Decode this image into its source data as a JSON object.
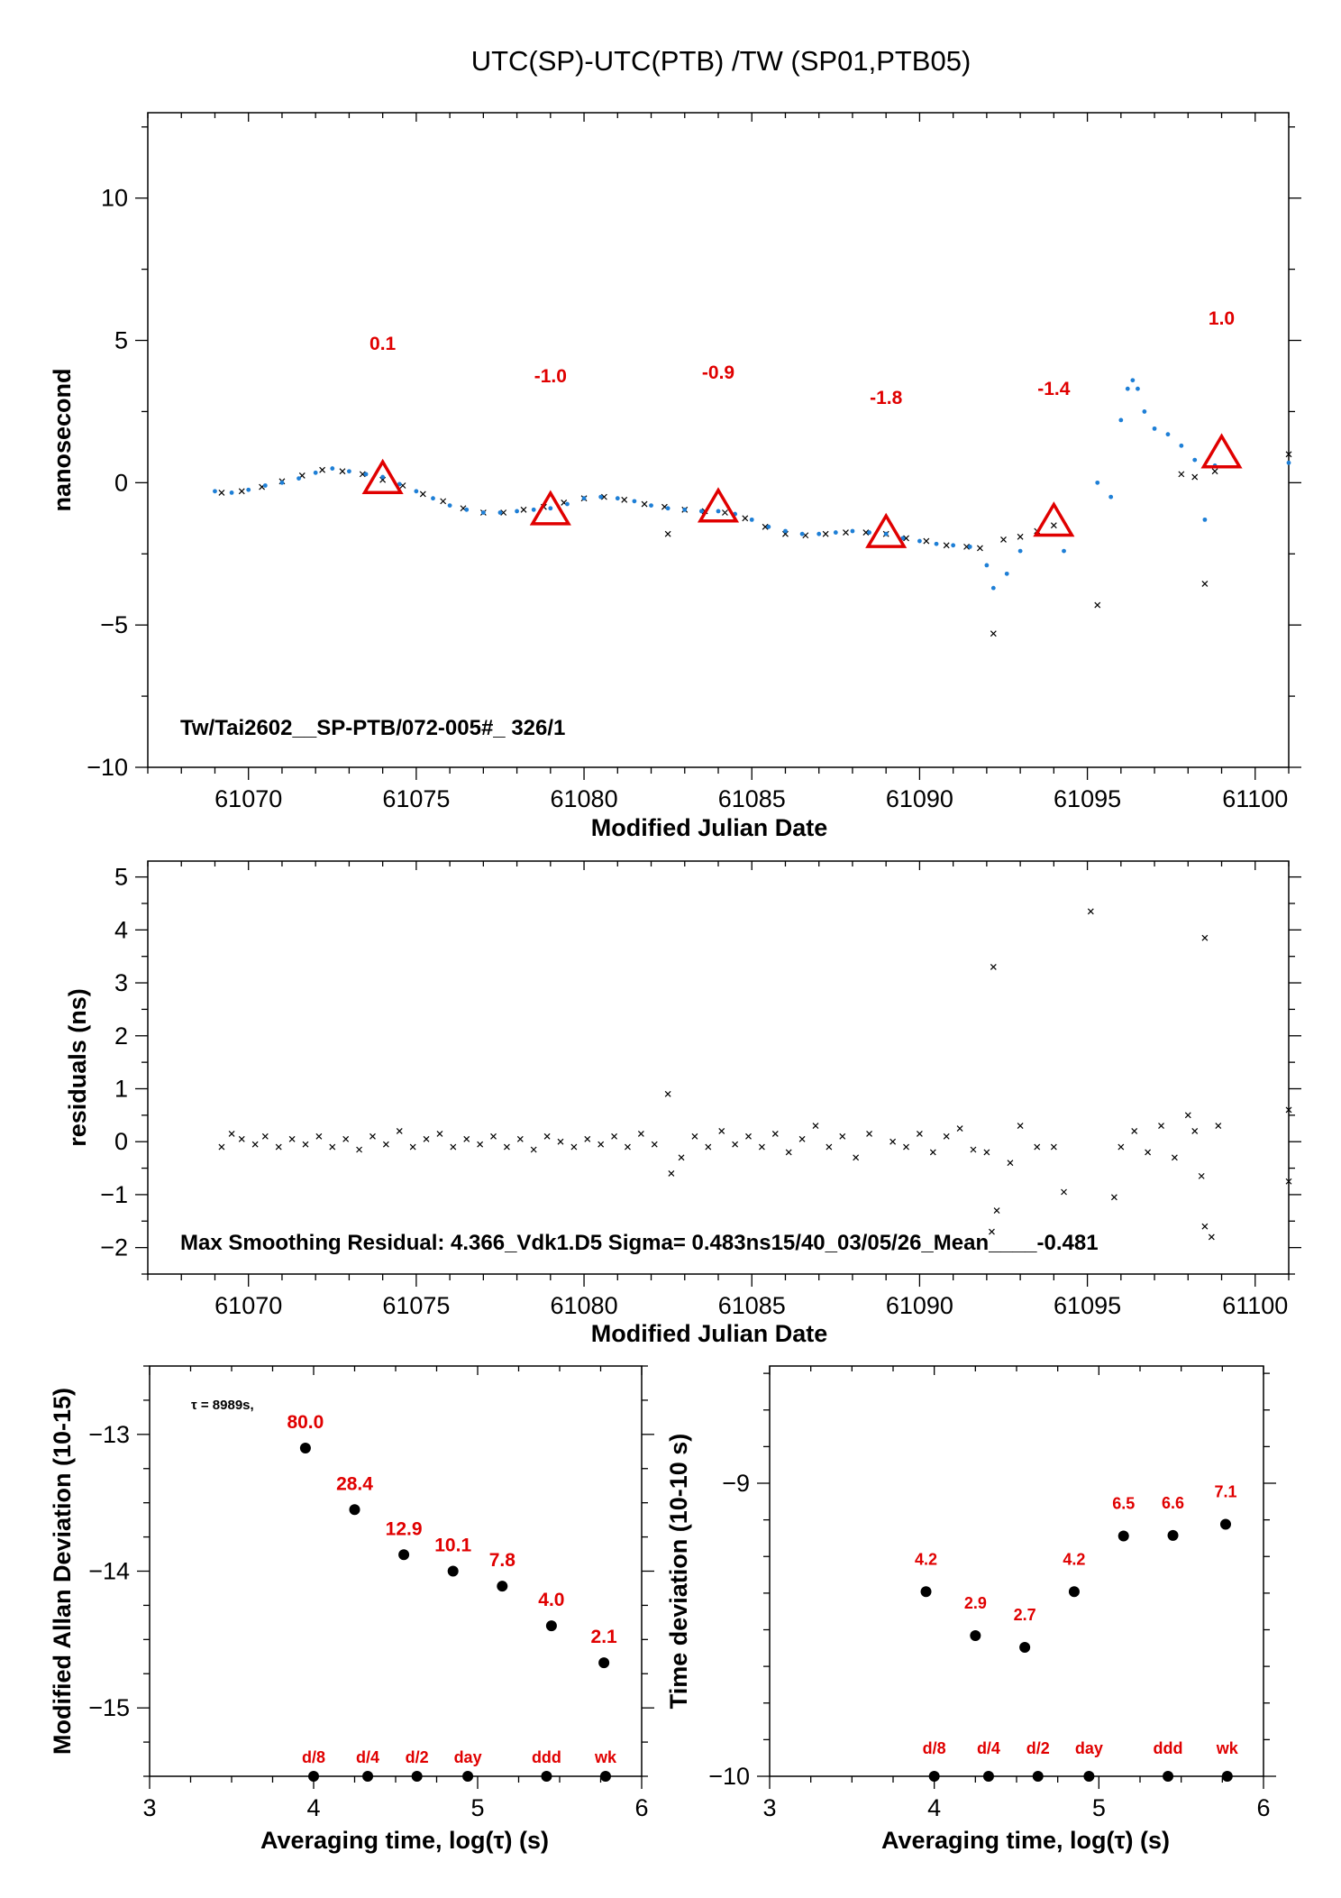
{
  "title": "UTC(SP)-UTC(PTB)  /TW  (SP01,PTB05)",
  "colors": {
    "red": "#e00000",
    "blue": "#1e7fd6",
    "black": "#000000"
  },
  "chart_data": [
    {
      "id": "main",
      "type": "scatter",
      "xlabel": "Modified Julian Date",
      "ylabel": "nanosecond",
      "xlim": [
        61067,
        61101
      ],
      "ylim": [
        -10,
        13
      ],
      "xticks": [
        61070,
        61075,
        61080,
        61085,
        61090,
        61095,
        61100
      ],
      "yticks": [
        -10,
        -5,
        0,
        5,
        10
      ],
      "annotation": "Tw/Tai2602__SP-PTB/072-005#_  326/1",
      "series": [
        {
          "marker": "x",
          "color": "#000000",
          "points": [
            [
              61069.2,
              -0.35
            ],
            [
              61069.8,
              -0.3
            ],
            [
              61070.4,
              -0.15
            ],
            [
              61071.0,
              0.05
            ],
            [
              61071.6,
              0.25
            ],
            [
              61072.2,
              0.45
            ],
            [
              61072.8,
              0.4
            ],
            [
              61073.4,
              0.3
            ],
            [
              61074.0,
              0.1
            ],
            [
              61074.6,
              -0.1
            ],
            [
              61075.2,
              -0.4
            ],
            [
              61075.8,
              -0.65
            ],
            [
              61076.4,
              -0.9
            ],
            [
              61077.0,
              -1.05
            ],
            [
              61077.6,
              -1.05
            ],
            [
              61078.2,
              -0.95
            ],
            [
              61078.8,
              -0.85
            ],
            [
              61079.4,
              -0.7
            ],
            [
              61080.0,
              -0.55
            ],
            [
              61080.6,
              -0.5
            ],
            [
              61081.2,
              -0.6
            ],
            [
              61081.8,
              -0.75
            ],
            [
              61082.4,
              -0.85
            ],
            [
              61082.5,
              -1.8
            ],
            [
              61083.0,
              -0.95
            ],
            [
              61083.6,
              -1.0
            ],
            [
              61084.2,
              -1.05
            ],
            [
              61084.8,
              -1.25
            ],
            [
              61085.4,
              -1.55
            ],
            [
              61086.0,
              -1.8
            ],
            [
              61086.6,
              -1.85
            ],
            [
              61087.2,
              -1.8
            ],
            [
              61087.8,
              -1.75
            ],
            [
              61088.4,
              -1.75
            ],
            [
              61089.0,
              -1.8
            ],
            [
              61089.6,
              -1.95
            ],
            [
              61090.2,
              -2.05
            ],
            [
              61090.8,
              -2.2
            ],
            [
              61091.4,
              -2.25
            ],
            [
              61091.8,
              -2.3
            ],
            [
              61092.2,
              -5.3
            ],
            [
              61092.5,
              -2.0
            ],
            [
              61093.0,
              -1.9
            ],
            [
              61093.5,
              -1.7
            ],
            [
              61094.0,
              -1.5
            ],
            [
              61095.3,
              -4.3
            ],
            [
              61097.8,
              0.3
            ],
            [
              61098.2,
              0.2
            ],
            [
              61098.5,
              -3.55
            ],
            [
              61098.8,
              0.4
            ],
            [
              61101.0,
              1.0
            ]
          ]
        },
        {
          "marker": "dot",
          "color": "#1e7fd6",
          "points": [
            [
              61069.0,
              -0.3
            ],
            [
              61069.5,
              -0.35
            ],
            [
              61070.0,
              -0.25
            ],
            [
              61070.5,
              -0.1
            ],
            [
              61071.0,
              0.0
            ],
            [
              61071.5,
              0.15
            ],
            [
              61072.0,
              0.35
            ],
            [
              61072.5,
              0.5
            ],
            [
              61073.0,
              0.4
            ],
            [
              61073.5,
              0.3
            ],
            [
              61074.0,
              0.2
            ],
            [
              61074.5,
              -0.05
            ],
            [
              61075.0,
              -0.3
            ],
            [
              61075.5,
              -0.55
            ],
            [
              61076.0,
              -0.8
            ],
            [
              61076.5,
              -0.95
            ],
            [
              61077.0,
              -1.05
            ],
            [
              61077.5,
              -1.05
            ],
            [
              61078.0,
              -1.0
            ],
            [
              61078.5,
              -0.95
            ],
            [
              61079.0,
              -0.9
            ],
            [
              61079.5,
              -0.75
            ],
            [
              61080.0,
              -0.55
            ],
            [
              61080.5,
              -0.5
            ],
            [
              61081.0,
              -0.55
            ],
            [
              61081.5,
              -0.65
            ],
            [
              61082.0,
              -0.8
            ],
            [
              61082.5,
              -0.9
            ],
            [
              61083.0,
              -0.95
            ],
            [
              61083.5,
              -1.0
            ],
            [
              61084.0,
              -1.0
            ],
            [
              61084.5,
              -1.1
            ],
            [
              61085.0,
              -1.3
            ],
            [
              61085.5,
              -1.55
            ],
            [
              61086.0,
              -1.7
            ],
            [
              61086.5,
              -1.8
            ],
            [
              61087.0,
              -1.8
            ],
            [
              61087.5,
              -1.75
            ],
            [
              61088.0,
              -1.7
            ],
            [
              61088.5,
              -1.75
            ],
            [
              61089.0,
              -1.8
            ],
            [
              61089.5,
              -1.95
            ],
            [
              61090.0,
              -2.05
            ],
            [
              61090.5,
              -2.15
            ],
            [
              61091.0,
              -2.2
            ],
            [
              61091.5,
              -2.25
            ],
            [
              61092.0,
              -2.9
            ],
            [
              61092.2,
              -3.7
            ],
            [
              61092.6,
              -3.2
            ],
            [
              61093.0,
              -2.4
            ],
            [
              61094.3,
              -2.4
            ],
            [
              61095.3,
              0.0
            ],
            [
              61095.7,
              -0.5
            ],
            [
              61096.0,
              2.2
            ],
            [
              61096.2,
              3.3
            ],
            [
              61096.35,
              3.6
            ],
            [
              61096.5,
              3.3
            ],
            [
              61096.7,
              2.5
            ],
            [
              61097.0,
              1.9
            ],
            [
              61097.4,
              1.7
            ],
            [
              61097.8,
              1.3
            ],
            [
              61098.2,
              0.8
            ],
            [
              61098.5,
              -1.3
            ],
            [
              61098.8,
              0.6
            ],
            [
              61101.0,
              0.7
            ]
          ]
        }
      ],
      "triangles": [
        {
          "x": 61074,
          "y": 0.1,
          "label": "0.1"
        },
        {
          "x": 61079,
          "y": -1.0,
          "label": "-1.0"
        },
        {
          "x": 61084,
          "y": -0.9,
          "label": "-0.9"
        },
        {
          "x": 61089,
          "y": -1.8,
          "label": "-1.8"
        },
        {
          "x": 61094,
          "y": -1.4,
          "label": "-1.4"
        },
        {
          "x": 61099,
          "y": 1.0,
          "label": "1.0"
        }
      ]
    },
    {
      "id": "residuals",
      "type": "scatter",
      "xlabel": "Modified Julian Date",
      "ylabel": "residuals (ns)",
      "xlim": [
        61067,
        61101
      ],
      "ylim": [
        -2.5,
        5.3
      ],
      "xticks": [
        61070,
        61075,
        61080,
        61085,
        61090,
        61095,
        61100
      ],
      "yticks": [
        -2,
        -1,
        0,
        1,
        2,
        3,
        4,
        5
      ],
      "annotation": "Max Smoothing Residual: 4.366_Vdk1.D5  Sigma= 0.483ns15/40_03/05/26_Mean____-0.481",
      "series": [
        {
          "marker": "x",
          "color": "#000000",
          "points": [
            [
              61069.2,
              -0.1
            ],
            [
              61069.5,
              0.15
            ],
            [
              61069.8,
              0.05
            ],
            [
              61070.2,
              -0.05
            ],
            [
              61070.5,
              0.1
            ],
            [
              61070.9,
              -0.1
            ],
            [
              61071.3,
              0.05
            ],
            [
              61071.7,
              -0.05
            ],
            [
              61072.1,
              0.1
            ],
            [
              61072.5,
              -0.1
            ],
            [
              61072.9,
              0.05
            ],
            [
              61073.3,
              -0.15
            ],
            [
              61073.7,
              0.1
            ],
            [
              61074.1,
              -0.05
            ],
            [
              61074.5,
              0.2
            ],
            [
              61074.9,
              -0.1
            ],
            [
              61075.3,
              0.05
            ],
            [
              61075.7,
              0.15
            ],
            [
              61076.1,
              -0.1
            ],
            [
              61076.5,
              0.05
            ],
            [
              61076.9,
              -0.05
            ],
            [
              61077.3,
              0.1
            ],
            [
              61077.7,
              -0.1
            ],
            [
              61078.1,
              0.05
            ],
            [
              61078.5,
              -0.15
            ],
            [
              61078.9,
              0.1
            ],
            [
              61079.3,
              0.0
            ],
            [
              61079.7,
              -0.1
            ],
            [
              61080.1,
              0.05
            ],
            [
              61080.5,
              -0.05
            ],
            [
              61080.9,
              0.1
            ],
            [
              61081.3,
              -0.1
            ],
            [
              61081.7,
              0.15
            ],
            [
              61082.1,
              -0.05
            ],
            [
              61082.5,
              0.9
            ],
            [
              61082.6,
              -0.6
            ],
            [
              61082.9,
              -0.3
            ],
            [
              61083.3,
              0.1
            ],
            [
              61083.7,
              -0.1
            ],
            [
              61084.1,
              0.2
            ],
            [
              61084.5,
              -0.05
            ],
            [
              61084.9,
              0.1
            ],
            [
              61085.3,
              -0.1
            ],
            [
              61085.7,
              0.15
            ],
            [
              61086.1,
              -0.2
            ],
            [
              61086.5,
              0.05
            ],
            [
              61086.9,
              0.3
            ],
            [
              61087.3,
              -0.1
            ],
            [
              61087.7,
              0.1
            ],
            [
              61088.1,
              -0.3
            ],
            [
              61088.5,
              0.15
            ],
            [
              61089.2,
              0.0
            ],
            [
              61089.6,
              -0.1
            ],
            [
              61090.0,
              0.15
            ],
            [
              61090.4,
              -0.2
            ],
            [
              61090.8,
              0.1
            ],
            [
              61091.2,
              0.25
            ],
            [
              61091.6,
              -0.15
            ],
            [
              61092.0,
              -0.2
            ],
            [
              61092.2,
              3.3
            ],
            [
              61092.15,
              -1.7
            ],
            [
              61092.3,
              -1.3
            ],
            [
              61092.7,
              -0.4
            ],
            [
              61093.0,
              0.3
            ],
            [
              61093.5,
              -0.1
            ],
            [
              61094.0,
              -0.1
            ],
            [
              61094.3,
              -0.95
            ],
            [
              61095.1,
              4.35
            ],
            [
              61095.8,
              -1.05
            ],
            [
              61096.0,
              -0.1
            ],
            [
              61096.4,
              0.2
            ],
            [
              61096.8,
              -0.2
            ],
            [
              61097.2,
              0.3
            ],
            [
              61097.6,
              -0.3
            ],
            [
              61098.0,
              0.5
            ],
            [
              61098.2,
              0.2
            ],
            [
              61098.4,
              -0.65
            ],
            [
              61098.5,
              -1.6
            ],
            [
              61098.5,
              3.85
            ],
            [
              61098.7,
              -1.8
            ],
            [
              61098.9,
              0.3
            ],
            [
              61101.0,
              0.6
            ],
            [
              61101.0,
              -0.75
            ]
          ]
        }
      ]
    },
    {
      "id": "mdev",
      "type": "scatter",
      "xlabel": "Averaging time, log(τ) (s)",
      "ylabel": "Modified Allan Deviation (10-15)",
      "xlim": [
        3,
        6
      ],
      "ylim": [
        -15.5,
        -12.5
      ],
      "xticks": [
        3,
        4,
        5,
        6
      ],
      "yticks": [
        -15,
        -14,
        -13
      ],
      "note": "τ = 8989s,",
      "points": [
        [
          3.95,
          -13.1
        ],
        [
          4.25,
          -13.55
        ],
        [
          4.55,
          -13.88
        ],
        [
          4.85,
          -14.0
        ],
        [
          5.15,
          -14.11
        ],
        [
          5.45,
          -14.4
        ],
        [
          5.77,
          -14.67
        ]
      ],
      "labels": [
        "80.0",
        "28.4",
        "12.9",
        "10.1",
        "7.8",
        "4.0",
        "2.1"
      ],
      "markers": [
        {
          "x": 4.0,
          "label": "d/8"
        },
        {
          "x": 4.33,
          "label": "d/4"
        },
        {
          "x": 4.63,
          "label": "d/2"
        },
        {
          "x": 4.94,
          "label": "day"
        },
        {
          "x": 5.42,
          "label": "ddd"
        },
        {
          "x": 5.78,
          "label": "wk"
        }
      ]
    },
    {
      "id": "tdev",
      "type": "scatter",
      "xlabel": "Averaging time, log(τ) (s)",
      "ylabel": "Time deviation (10-10 s)",
      "xlim": [
        3,
        6
      ],
      "ylim": [
        -10,
        -8.6
      ],
      "xticks": [
        3,
        4,
        5,
        6
      ],
      "yticks": [
        -10,
        -9
      ],
      "points": [
        [
          3.95,
          -9.37
        ],
        [
          4.25,
          -9.52
        ],
        [
          4.55,
          -9.56
        ],
        [
          4.85,
          -9.37
        ],
        [
          5.15,
          -9.18
        ],
        [
          5.45,
          -9.178
        ],
        [
          5.77,
          -9.14
        ]
      ],
      "labels": [
        "4.2",
        "2.9",
        "2.7",
        "4.2",
        "6.5",
        "6.6",
        "7.1"
      ],
      "markers": [
        {
          "x": 4.0,
          "label": "d/8"
        },
        {
          "x": 4.33,
          "label": "d/4"
        },
        {
          "x": 4.63,
          "label": "d/2"
        },
        {
          "x": 4.94,
          "label": "day"
        },
        {
          "x": 5.42,
          "label": "ddd"
        },
        {
          "x": 5.78,
          "label": "wk"
        }
      ]
    }
  ]
}
